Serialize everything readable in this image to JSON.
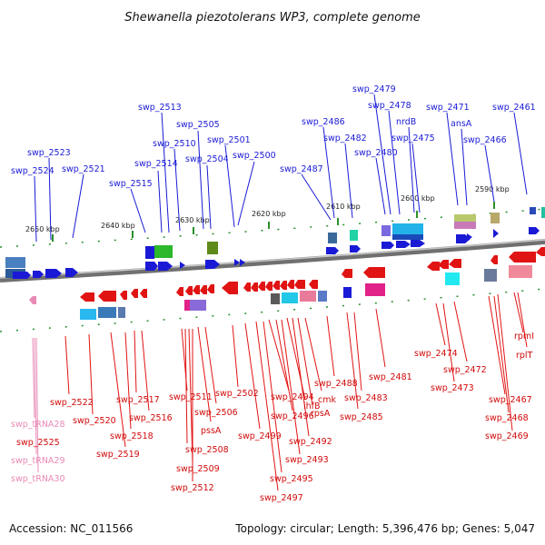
{
  "title": "Shewanella piezotolerans WP3, complete genome",
  "footer": {
    "accession": "Accession: NC_011566",
    "summary": "Topology: circular; Length: 5,396,476 bp; Genes: 5,047"
  },
  "colors": {
    "forward": "#1a1ad6",
    "reverse": "#e11414",
    "trna": "#e88ab6",
    "backbone": "#8a8a8a",
    "tick": "#2a8f2a"
  },
  "axis": {
    "unit": "kbp",
    "ticks": [
      {
        "value": 2650,
        "label": "2650 kbp"
      },
      {
        "value": 2640,
        "label": "2640 kbp"
      },
      {
        "value": 2630,
        "label": "2630 kbp"
      },
      {
        "value": 2620,
        "label": "2620 kbp"
      },
      {
        "value": 2610,
        "label": "2610 kbp"
      },
      {
        "value": 2600,
        "label": "2600 kbp"
      },
      {
        "value": 2590,
        "label": "2590 kbp"
      }
    ]
  },
  "forward_genes": [
    "swp_2524",
    "swp_2523",
    "swp_2521",
    "swp_2515",
    "swp_2514",
    "swp_2513",
    "swp_2510",
    "swp_2505",
    "swp_2504",
    "swp_2501",
    "swp_2500",
    "swp_2487",
    "swp_2486",
    "swp_2482",
    "swp_2480",
    "swp_2479",
    "swp_2478",
    "nrdB",
    "swp_2475",
    "swp_2471",
    "ansA",
    "swp_2466",
    "swp_2461"
  ],
  "reverse_genes": [
    "swp_2522",
    "swp_2520",
    "swp_2519",
    "swp_2518",
    "swp_2517",
    "swp_2516",
    "swp_2511",
    "swp_2508",
    "swp_2509",
    "swp_2512",
    "pssA",
    "swp_2506",
    "swp_2502",
    "swp_2499",
    "swp_2497",
    "swp_2495",
    "swp_2494",
    "swp_2496",
    "swp_2493",
    "ihfB",
    "swp_2492",
    "rpsA",
    "cmk",
    "swp_2488",
    "swp_2485",
    "swp_2483",
    "swp_2481",
    "swp_2474",
    "swp_2472",
    "swp_2473",
    "swp_2467",
    "swp_2468",
    "swp_2469",
    "rpmI",
    "rplT"
  ],
  "trna_genes": [
    "swp_tRNA28",
    "swp_tRNA29",
    "swp_tRNA30"
  ],
  "other_genes": [
    "swp_2525"
  ]
}
